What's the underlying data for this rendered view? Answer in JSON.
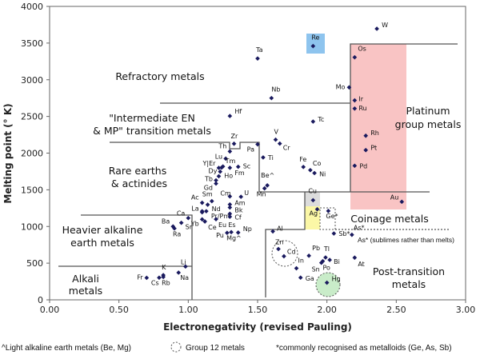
{
  "chart_data": {
    "type": "scatter",
    "xlabel": "Electronegativity (revised Pauling)",
    "ylabel": "Melting point (° K)",
    "xlim": [
      0,
      3
    ],
    "ylim": [
      0,
      4000
    ],
    "xticks": [
      "0.00",
      "0.50",
      "1.00",
      "1.50",
      "2.00",
      "2.50",
      "3.00"
    ],
    "yticks": [
      "0",
      "500",
      "1000",
      "1500",
      "2000",
      "2500",
      "3000",
      "3500",
      "4000"
    ],
    "grid": false,
    "regions": [
      "Refractory metals",
      "\"Intermediate EN",
      "& MP\" transition metals",
      "Rare earths",
      "& actinides",
      "Heavier alkaline",
      "earth metals",
      "Alkali",
      "metals",
      "Platinum",
      "group metals",
      "Coinage metals",
      "Post-transition",
      "metals"
    ],
    "note": "As* (sublimes rather than melts)",
    "footnotes": [
      "^Light alkaline earth metals (Be, Mg)",
      "Group 12 metals",
      "*commonly recognised as metalloids (Ge, As, Sb)"
    ],
    "points": [
      {
        "s": "W",
        "l": "W",
        "x": 2.36,
        "y": 3695
      },
      {
        "s": "Re",
        "l": "Re",
        "x": 1.9,
        "y": 3459
      },
      {
        "s": "Os",
        "l": "Os",
        "x": 2.2,
        "y": 3306
      },
      {
        "s": "Ta",
        "l": "Ta",
        "x": 1.5,
        "y": 3290
      },
      {
        "s": "Mo",
        "l": "Mo",
        "x": 2.16,
        "y": 2896
      },
      {
        "s": "Nb",
        "l": "Nb",
        "x": 1.6,
        "y": 2750
      },
      {
        "s": "Ir",
        "l": "Ir",
        "x": 2.2,
        "y": 2719
      },
      {
        "s": "Ru",
        "l": "Ru",
        "x": 2.2,
        "y": 2607
      },
      {
        "s": "Hf",
        "l": "Hf",
        "x": 1.3,
        "y": 2506
      },
      {
        "s": "Tc",
        "l": "Tc",
        "x": 1.9,
        "y": 2430
      },
      {
        "s": "Rh",
        "l": "Rh",
        "x": 2.28,
        "y": 2237
      },
      {
        "s": "V",
        "l": "V",
        "x": 1.63,
        "y": 2183
      },
      {
        "s": "Cr",
        "l": "Cr",
        "x": 1.66,
        "y": 2130
      },
      {
        "s": "Zr",
        "l": "Zr",
        "x": 1.33,
        "y": 2128
      },
      {
        "s": "Pt",
        "l": "Pt",
        "x": 2.28,
        "y": 2041
      },
      {
        "s": "Th",
        "l": "Th",
        "x": 1.3,
        "y": 2023
      },
      {
        "s": "Lu",
        "l": "Lu",
        "x": 1.27,
        "y": 1925
      },
      {
        "s": "Ti",
        "l": "Ti",
        "x": 1.54,
        "y": 1941
      },
      {
        "s": "Pa",
        "l": "Pa",
        "x": 1.5,
        "y": 2120
      },
      {
        "s": "Tm",
        "l": "Tm",
        "x": 1.25,
        "y": 1818
      },
      {
        "s": "Fe",
        "l": "Fe",
        "x": 1.83,
        "y": 1811
      },
      {
        "s": "Sc",
        "l": "Sc",
        "x": 1.36,
        "y": 1814
      },
      {
        "s": "Y",
        "l": "Y|Er",
        "x": 1.22,
        "y": 1799
      },
      {
        "s": "Er",
        "l": "",
        "x": 1.24,
        "y": 1802
      },
      {
        "s": "Ho",
        "l": "Ho",
        "x": 1.23,
        "y": 1747
      },
      {
        "s": "Dy",
        "l": "Dy",
        "x": 1.22,
        "y": 1685
      },
      {
        "s": "Co",
        "l": "Co",
        "x": 1.88,
        "y": 1768
      },
      {
        "s": "Ni",
        "l": "Ni",
        "x": 1.91,
        "y": 1728
      },
      {
        "s": "Pd",
        "l": "Pd",
        "x": 2.2,
        "y": 1828
      },
      {
        "s": "Fm",
        "l": "Fm",
        "x": 1.3,
        "y": 1800
      },
      {
        "s": "Tb",
        "l": "Tb",
        "x": 1.2,
        "y": 1629
      },
      {
        "s": "Gd",
        "l": "Gd",
        "x": 1.2,
        "y": 1585
      },
      {
        "s": "Be",
        "l": "Be^",
        "x": 1.57,
        "y": 1560
      },
      {
        "s": "Mn",
        "l": "Mn",
        "x": 1.55,
        "y": 1519
      },
      {
        "s": "Cu",
        "l": "Cu",
        "x": 1.9,
        "y": 1358
      },
      {
        "s": "Au",
        "l": "Au",
        "x": 2.54,
        "y": 1337
      },
      {
        "s": "Sm",
        "l": "Sm",
        "x": 1.17,
        "y": 1345
      },
      {
        "s": "Cm",
        "l": "Cm",
        "x": 1.3,
        "y": 1410
      },
      {
        "s": "U",
        "l": "U",
        "x": 1.38,
        "y": 1405
      },
      {
        "s": "Ac",
        "l": "Ac",
        "x": 1.1,
        "y": 1323
      },
      {
        "s": "Nd",
        "l": "Nd",
        "x": 1.14,
        "y": 1297
      },
      {
        "s": "Am",
        "l": "Am",
        "x": 1.3,
        "y": 1300
      },
      {
        "s": "Bk",
        "l": "Bk",
        "x": 1.3,
        "y": 1259
      },
      {
        "s": "Pm",
        "l": "Pr/Pm",
        "x": 1.13,
        "y": 1208
      },
      {
        "s": "Pr",
        "l": "",
        "x": 1.1,
        "y": 1208
      },
      {
        "s": "La",
        "l": "La",
        "x": 1.1,
        "y": 1193
      },
      {
        "s": "Cf",
        "l": "Cf",
        "x": 1.3,
        "y": 1173
      },
      {
        "s": "Es",
        "l": "Es",
        "x": 1.3,
        "y": 1133
      },
      {
        "s": "Ag",
        "l": "Ag",
        "x": 1.93,
        "y": 1235
      },
      {
        "s": "Ge",
        "l": "Ge*",
        "x": 2.01,
        "y": 1211
      },
      {
        "s": "Ca",
        "l": "Ca",
        "x": 1.0,
        "y": 1115
      },
      {
        "s": "Sr",
        "l": "Sr",
        "x": 0.95,
        "y": 1050
      },
      {
        "s": "Ba",
        "l": "Ba",
        "x": 0.89,
        "y": 1000
      },
      {
        "s": "Ra",
        "l": "Ra",
        "x": 0.9,
        "y": 973
      },
      {
        "s": "Yb",
        "l": "Yb",
        "x": 1.1,
        "y": 1097
      },
      {
        "s": "Ce",
        "l": "Ce",
        "x": 1.12,
        "y": 1068
      },
      {
        "s": "Eu",
        "l": "Eu",
        "x": 1.2,
        "y": 1099
      },
      {
        "s": "As",
        "l": "As*",
        "x": 2.18,
        "y": 887
      },
      {
        "s": "Sb",
        "l": "Sb*",
        "x": 2.05,
        "y": 904
      },
      {
        "s": "Al",
        "l": "Al",
        "x": 1.61,
        "y": 933
      },
      {
        "s": "Pu",
        "l": "Pu",
        "x": 1.28,
        "y": 913
      },
      {
        "s": "Np",
        "l": "Np",
        "x": 1.36,
        "y": 917
      },
      {
        "s": "Mg",
        "l": "Mg^",
        "x": 1.31,
        "y": 923
      },
      {
        "s": "Zn",
        "l": "Zn",
        "x": 1.65,
        "y": 693
      },
      {
        "s": "Cd",
        "l": "Cd",
        "x": 1.69,
        "y": 594
      },
      {
        "s": "Pb",
        "l": "Pb",
        "x": 1.87,
        "y": 601
      },
      {
        "s": "Tl",
        "l": "Tl",
        "x": 1.99,
        "y": 577
      },
      {
        "s": "Bi",
        "l": "Bi",
        "x": 2.02,
        "y": 544
      },
      {
        "s": "Po",
        "l": "Po",
        "x": 1.97,
        "y": 527
      },
      {
        "s": "Sn",
        "l": "Sn",
        "x": 1.96,
        "y": 505
      },
      {
        "s": "At",
        "l": "At",
        "x": 2.2,
        "y": 575
      },
      {
        "s": "In",
        "l": "In",
        "x": 1.78,
        "y": 430
      },
      {
        "s": "Ga",
        "l": "Ga",
        "x": 1.81,
        "y": 303
      },
      {
        "s": "Hg",
        "l": "Hg",
        "x": 2.0,
        "y": 234
      },
      {
        "s": "Li",
        "l": "Li",
        "x": 0.98,
        "y": 454
      },
      {
        "s": "Na",
        "l": "Na",
        "x": 0.93,
        "y": 371
      },
      {
        "s": "K",
        "l": "K",
        "x": 0.82,
        "y": 337
      },
      {
        "s": "Rb",
        "l": "Rb",
        "x": 0.82,
        "y": 312
      },
      {
        "s": "Cs",
        "l": "Cs",
        "x": 0.79,
        "y": 302
      },
      {
        "s": "Fr",
        "l": "Fr",
        "x": 0.7,
        "y": 300
      }
    ],
    "colors": {
      "marker": "#1a1a5e",
      "platinum": "#f9c4c4",
      "rhenium": "#8ec4ee",
      "copper": "#dcdcdc",
      "silver": "#fbf7a6",
      "mercury": "#c9ecc9"
    }
  }
}
